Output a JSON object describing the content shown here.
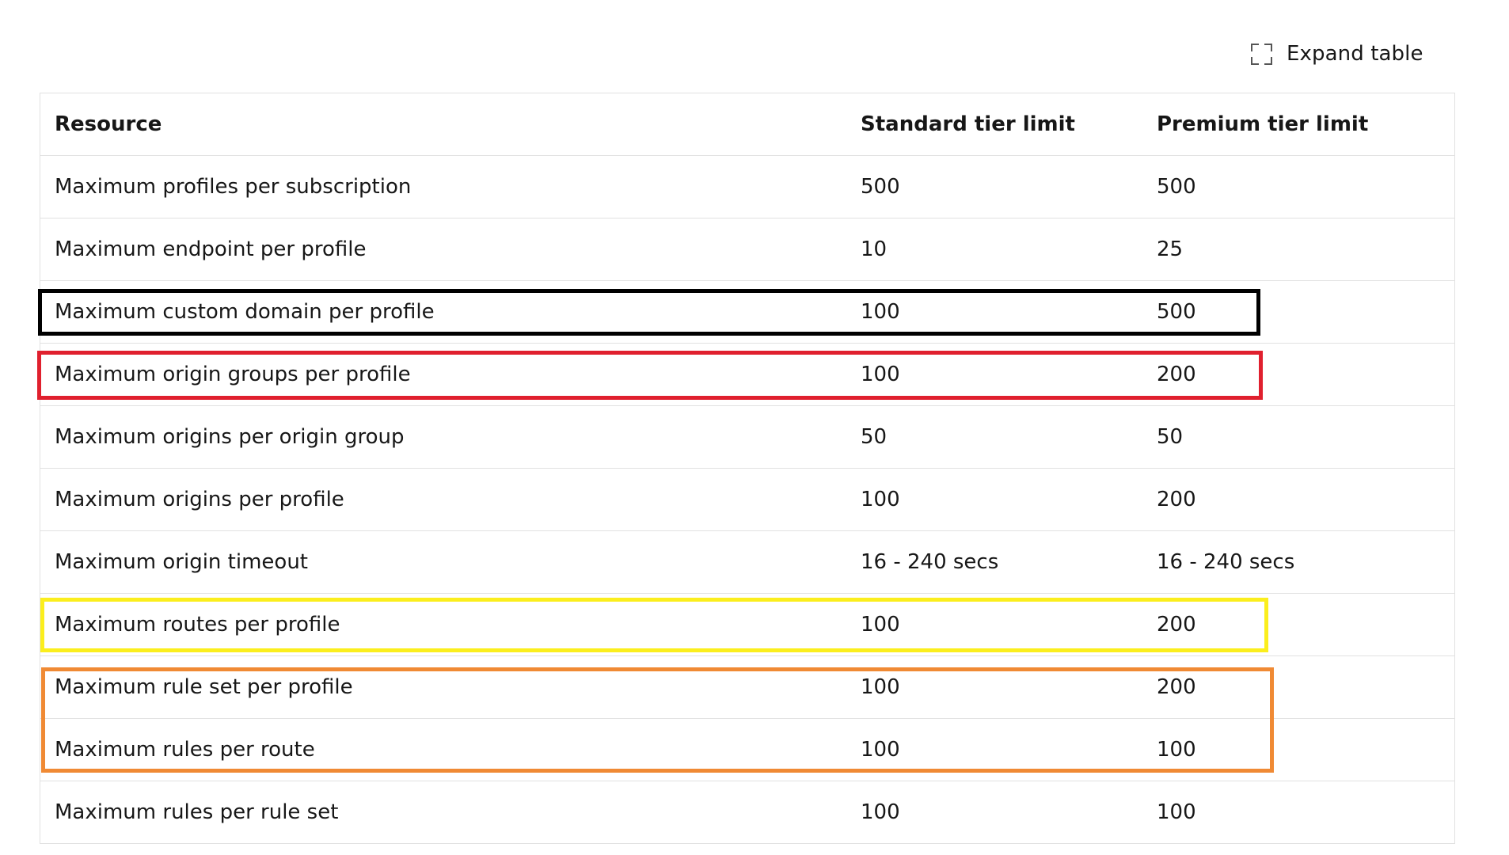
{
  "expand_table": {
    "label": "Expand table",
    "icon": "expand-icon"
  },
  "table": {
    "headers": [
      "Resource",
      "Standard tier limit",
      "Premium tier limit"
    ],
    "rows": [
      [
        "Maximum profiles per subscription",
        "500",
        "500"
      ],
      [
        "Maximum endpoint per profile",
        "10",
        "25"
      ],
      [
        "Maximum custom domain per profile",
        "100",
        "500"
      ],
      [
        "Maximum origin groups per profile",
        "100",
        "200"
      ],
      [
        "Maximum origins per origin group",
        "50",
        "50"
      ],
      [
        "Maximum origins per profile",
        "100",
        "200"
      ],
      [
        "Maximum origin timeout",
        "16 - 240 secs",
        "16 - 240 secs"
      ],
      [
        "Maximum routes per profile",
        "100",
        "200"
      ],
      [
        "Maximum rule set per profile",
        "100",
        "200"
      ],
      [
        "Maximum rules per route",
        "100",
        "100"
      ],
      [
        "Maximum rules per rule set",
        "100",
        "100"
      ]
    ]
  },
  "highlights": [
    {
      "name": "highlight-custom-domain",
      "color": "#000000"
    },
    {
      "name": "highlight-origin-groups",
      "color": "#e0202e"
    },
    {
      "name": "highlight-routes",
      "color": "#fbee1d"
    },
    {
      "name": "highlight-rule-set-rules",
      "color": "#f08a34"
    }
  ]
}
